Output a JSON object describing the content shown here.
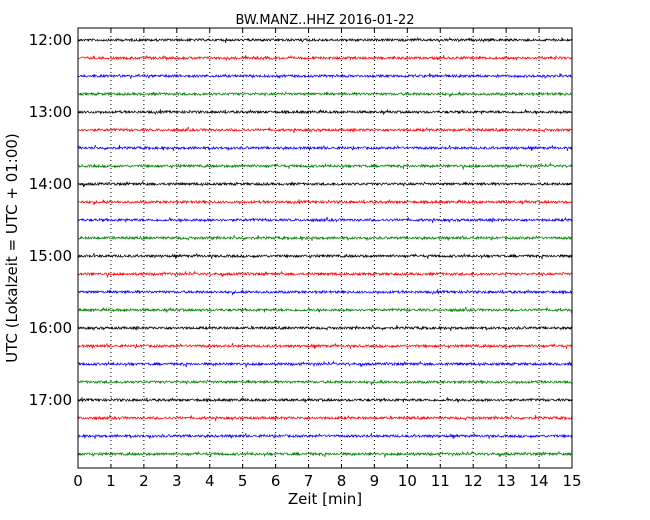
{
  "chart_data": {
    "type": "line",
    "title": "BW.MANZ..HHZ 2016-01-22",
    "xlabel": "Zeit  [min]",
    "ylabel": "UTC (Lokalzeit = UTC + 01:00)",
    "xlim": [
      0,
      15
    ],
    "x_ticks": [
      "0",
      "1",
      "2",
      "3",
      "4",
      "5",
      "6",
      "7",
      "8",
      "9",
      "10",
      "11",
      "12",
      "13",
      "14",
      "15"
    ],
    "y_ticks": [
      "12:00",
      "13:00",
      "14:00",
      "15:00",
      "16:00",
      "17:00"
    ],
    "grid": "vertical-dotted",
    "row_minutes": 15,
    "first_row": "12:00",
    "row_count": 24,
    "row_colors": [
      "#000000",
      "#ff0000",
      "#0000ff",
      "#008000"
    ]
  }
}
